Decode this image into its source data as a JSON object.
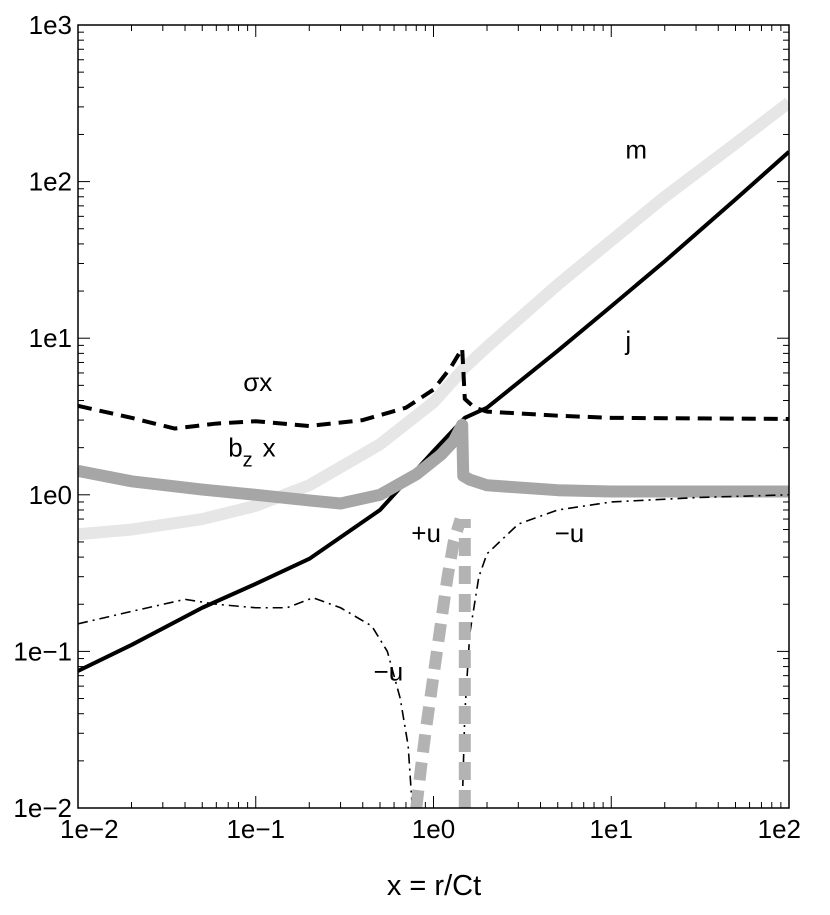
{
  "chart_data": {
    "type": "line",
    "xlabel": "x = r/Ct",
    "ylabel": "",
    "x_scale": "log",
    "y_scale": "log",
    "xlim": [
      0.01,
      100
    ],
    "ylim": [
      0.01,
      1000
    ],
    "x_ticks": [
      {
        "value": 0.01,
        "label": "1e−2"
      },
      {
        "value": 0.1,
        "label": "1e−1"
      },
      {
        "value": 1,
        "label": "1e0"
      },
      {
        "value": 10,
        "label": "1e1"
      },
      {
        "value": 100,
        "label": "1e2"
      }
    ],
    "y_ticks": [
      {
        "value": 0.01,
        "label": "1e−2"
      },
      {
        "value": 0.1,
        "label": "1e−1"
      },
      {
        "value": 1,
        "label": "1e0"
      },
      {
        "value": 10,
        "label": "1e1"
      },
      {
        "value": 100,
        "label": "1e2"
      },
      {
        "value": 1000,
        "label": "1e3"
      }
    ],
    "grid": false,
    "series": [
      {
        "key": "m",
        "color": "#e6e6e6",
        "style": "solid",
        "weight": "thick",
        "points": [
          [
            0.01,
            0.56
          ],
          [
            0.02,
            0.6
          ],
          [
            0.05,
            0.7
          ],
          [
            0.1,
            0.85
          ],
          [
            0.2,
            1.15
          ],
          [
            0.5,
            2.1
          ],
          [
            1,
            3.9
          ],
          [
            1.5,
            6.5
          ],
          [
            2,
            8.8
          ],
          [
            5,
            22
          ],
          [
            10,
            42
          ],
          [
            20,
            80
          ],
          [
            50,
            175
          ],
          [
            100,
            320
          ]
        ]
      },
      {
        "key": "j",
        "color": "#000000",
        "style": "solid",
        "weight": "medium",
        "points": [
          [
            0.01,
            0.075
          ],
          [
            0.02,
            0.11
          ],
          [
            0.05,
            0.19
          ],
          [
            0.1,
            0.27
          ],
          [
            0.2,
            0.39
          ],
          [
            0.5,
            0.8
          ],
          [
            1,
            1.9
          ],
          [
            1.5,
            3.1
          ],
          [
            2,
            3.6
          ],
          [
            5,
            8.3
          ],
          [
            10,
            16
          ],
          [
            20,
            31
          ],
          [
            50,
            77
          ],
          [
            100,
            155
          ]
        ]
      },
      {
        "key": "sigma_x",
        "color": "#000000",
        "style": "dashed",
        "weight": "medium",
        "points": [
          [
            0.01,
            3.7
          ],
          [
            0.02,
            3.1
          ],
          [
            0.035,
            2.65
          ],
          [
            0.06,
            2.85
          ],
          [
            0.1,
            2.95
          ],
          [
            0.2,
            2.75
          ],
          [
            0.4,
            3.0
          ],
          [
            0.7,
            3.6
          ],
          [
            1.0,
            4.7
          ],
          [
            1.25,
            6.5
          ],
          [
            1.45,
            8.6
          ],
          [
            1.5,
            4.1
          ],
          [
            1.7,
            3.6
          ],
          [
            2,
            3.4
          ],
          [
            5,
            3.2
          ],
          [
            10,
            3.1
          ],
          [
            100,
            3.05
          ]
        ]
      },
      {
        "key": "bz_x",
        "color": "#a6a6a6",
        "style": "solid",
        "weight": "thick",
        "points": [
          [
            0.01,
            1.42
          ],
          [
            0.02,
            1.22
          ],
          [
            0.05,
            1.08
          ],
          [
            0.1,
            1.0
          ],
          [
            0.2,
            0.92
          ],
          [
            0.3,
            0.88
          ],
          [
            0.5,
            1.0
          ],
          [
            0.8,
            1.35
          ],
          [
            1.1,
            1.8
          ],
          [
            1.3,
            2.2
          ],
          [
            1.45,
            2.8
          ],
          [
            1.47,
            1.32
          ],
          [
            1.6,
            1.25
          ],
          [
            2,
            1.15
          ],
          [
            5,
            1.07
          ],
          [
            10,
            1.05
          ],
          [
            100,
            1.05
          ]
        ]
      },
      {
        "key": "neg_u_left",
        "color": "#000000",
        "style": "dashdot",
        "weight": "thin",
        "points": [
          [
            0.01,
            0.15
          ],
          [
            0.02,
            0.18
          ],
          [
            0.04,
            0.215
          ],
          [
            0.06,
            0.2
          ],
          [
            0.1,
            0.19
          ],
          [
            0.15,
            0.19
          ],
          [
            0.21,
            0.22
          ],
          [
            0.3,
            0.19
          ],
          [
            0.45,
            0.145
          ],
          [
            0.55,
            0.1
          ],
          [
            0.65,
            0.05
          ],
          [
            0.72,
            0.025
          ],
          [
            0.76,
            0.01
          ]
        ]
      },
      {
        "key": "plus_u",
        "color": "#b3b3b3",
        "style": "dashed",
        "weight": "thick",
        "points": [
          [
            0.8,
            0.01
          ],
          [
            0.85,
            0.018
          ],
          [
            0.9,
            0.03
          ],
          [
            1.0,
            0.07
          ],
          [
            1.1,
            0.15
          ],
          [
            1.2,
            0.3
          ],
          [
            1.3,
            0.5
          ],
          [
            1.42,
            0.7
          ]
        ]
      },
      {
        "key": "neg_u_right",
        "color": "#000000",
        "style": "dashdot",
        "weight": "thin",
        "points": [
          [
            1.45,
            0.01
          ],
          [
            1.5,
            0.04
          ],
          [
            1.6,
            0.13
          ],
          [
            1.8,
            0.3
          ],
          [
            2,
            0.42
          ],
          [
            3,
            0.65
          ],
          [
            5,
            0.8
          ],
          [
            10,
            0.9
          ],
          [
            30,
            0.96
          ],
          [
            100,
            1.0
          ]
        ]
      },
      {
        "key": "neg_u_right_gray",
        "color": "#b3b3b3",
        "style": "dashed",
        "weight": "thick",
        "points": [
          [
            1.5,
            0.01
          ],
          [
            1.5,
            0.7
          ]
        ]
      }
    ],
    "labels": [
      {
        "text": "m",
        "x": 12,
        "y": 140
      },
      {
        "text": "j",
        "x": 12,
        "y": 8.5
      },
      {
        "text": "σx",
        "x": 0.085,
        "y": 4.6
      },
      {
        "text": "+u",
        "x": 0.75,
        "y": 0.5
      },
      {
        "text": "−u",
        "x": 4.8,
        "y": 0.5
      },
      {
        "text": "−u",
        "x": 0.46,
        "y": 0.065
      }
    ],
    "bz_label": {
      "base": "b",
      "sub": "z",
      "rest": "x",
      "x": 0.07,
      "y": 1.75
    }
  }
}
